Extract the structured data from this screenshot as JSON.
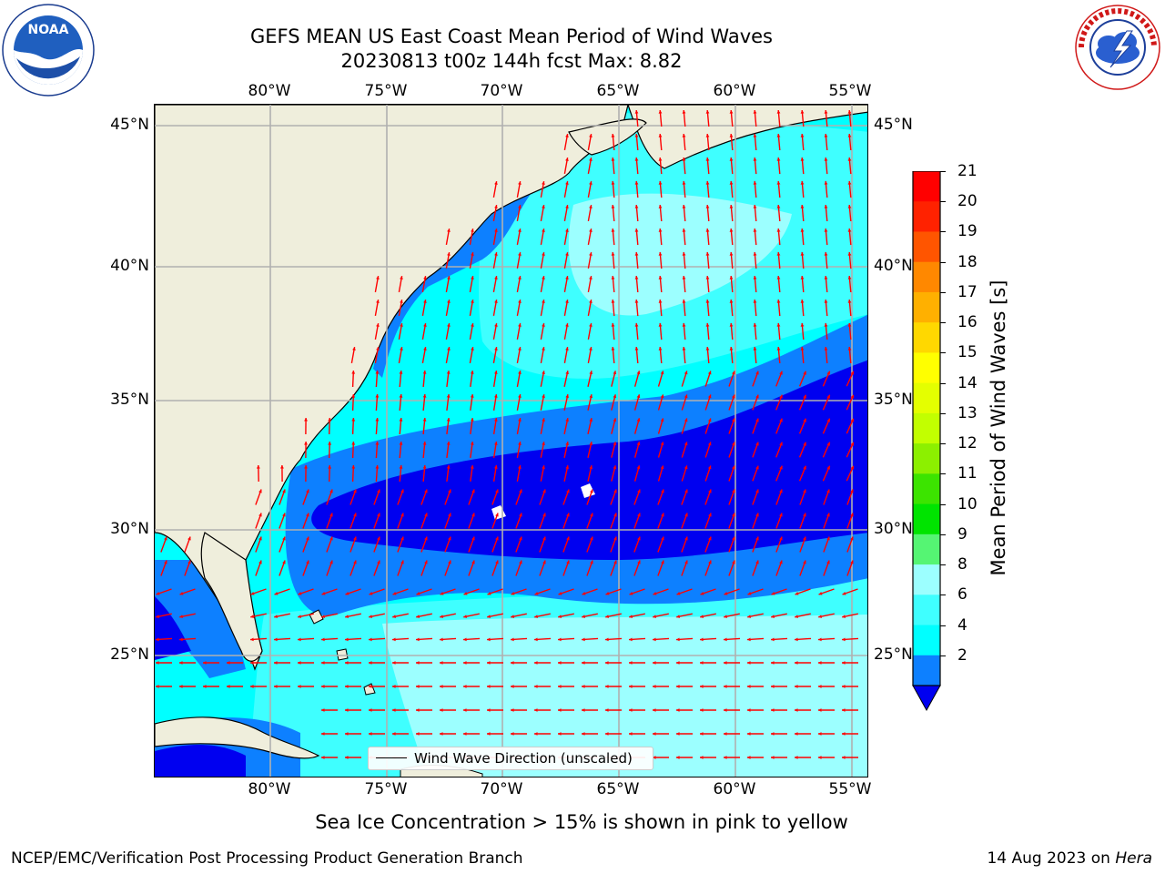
{
  "header": {
    "title_line1": "GEFS MEAN US East Coast Mean Period of Wind Waves",
    "title_line2": "20230813 t00z 144h fcst   Max: 8.82"
  },
  "logos": {
    "left_logo_text": "NOAA",
    "left_logo_ring_text": "NATIONAL OCEANIC AND ATMOSPHERIC ADMINISTRATION · U.S. DEPARTMENT OF COMMERCE",
    "right_logo_ring_text": "NATIONAL WEATHER SERVICE"
  },
  "map": {
    "lon_ticks": [
      "80°W",
      "75°W",
      "70°W",
      "65°W",
      "60°W",
      "55°W"
    ],
    "lat_ticks_left": [
      "45°N",
      "40°N",
      "35°N",
      "30°N",
      "25°N"
    ],
    "lat_ticks_right": [
      "45°N",
      "40°N",
      "35°N",
      "30°N",
      "25°N"
    ],
    "legend_label": "Wind Wave Direction (unscaled)",
    "colors": {
      "land": "#efeedc",
      "ocean_4_6": "#00ffff",
      "ocean_6_8": "#3fffff",
      "ocean_8_9": "#9cffff",
      "ocean_2_4": "#0d80ff",
      "ocean_lt2": "#0000f0",
      "arrow": "#ff0000",
      "grid": "#b0b0b0",
      "coast": "#000000"
    }
  },
  "colorbar": {
    "label": "Mean Period of Wind Waves [s]",
    "ticks": [
      "21",
      "20",
      "19",
      "18",
      "17",
      "16",
      "15",
      "14",
      "13",
      "12",
      "11",
      "10",
      "9",
      "8",
      "6",
      "4",
      "2"
    ],
    "bands": [
      "#ff0000",
      "#ff2200",
      "#ff5500",
      "#ff8800",
      "#ffb000",
      "#ffd800",
      "#ffff00",
      "#e4ff00",
      "#c2ff00",
      "#8cf000",
      "#3ce400",
      "#00e400",
      "#55f573",
      "#9cffff",
      "#3fffff",
      "#00ffff",
      "#0d80ff"
    ],
    "extend_color": "#0000f0"
  },
  "caption": "Sea Ice Concentration > 15% is shown in pink to yellow",
  "footer": {
    "left": "NCEP/EMC/Verification Post Processing Product Generation Branch",
    "right_date": "14 Aug 2023 on ",
    "right_machine": "Hera"
  }
}
